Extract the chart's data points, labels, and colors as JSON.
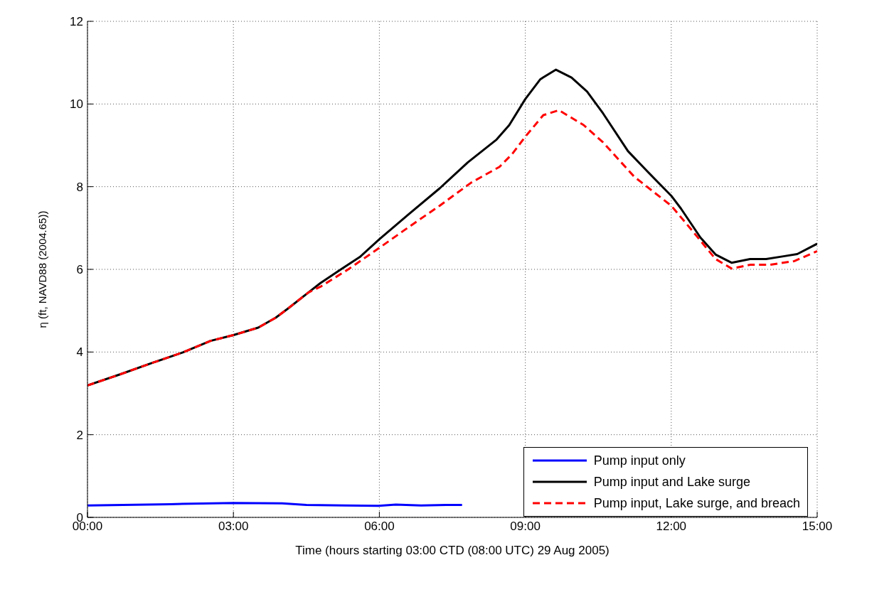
{
  "chart_data": {
    "type": "line",
    "xlabel": "Time (hours starting 03:00 CTD (08:00 UTC) 29 Aug 2005)",
    "ylabel": "η (ft, NAVD88 (2004.65))",
    "xlim": [
      0,
      15
    ],
    "xticks": [
      {
        "value": 0,
        "label": "00:00"
      },
      {
        "value": 3,
        "label": "03:00"
      },
      {
        "value": 6,
        "label": "06:00"
      },
      {
        "value": 9,
        "label": "09:00"
      },
      {
        "value": 12,
        "label": "12:00"
      },
      {
        "value": 15,
        "label": "15:00"
      }
    ],
    "ylim": [
      0,
      12
    ],
    "yticks": [
      0,
      2,
      4,
      6,
      8,
      10,
      12
    ],
    "grid": true,
    "legend": "bottom right",
    "marker": "none",
    "series": [
      {
        "name": "Pump input only",
        "color": "#0000ff",
        "line_style": "solid",
        "x": [
          0,
          1.7,
          3.0,
          4.0,
          4.5,
          5.3,
          5.98,
          6.34,
          6.86,
          7.37,
          7.7
        ],
        "values": [
          0.29,
          0.32,
          0.35,
          0.34,
          0.3,
          0.29,
          0.28,
          0.31,
          0.29,
          0.3,
          0.3
        ]
      },
      {
        "name": "Pump input and Lake surge",
        "color": "#000000",
        "line_style": "solid",
        "x": [
          0,
          0.67,
          1.34,
          1.96,
          2.53,
          3.0,
          3.51,
          3.87,
          4.12,
          4.54,
          4.79,
          5.21,
          5.6,
          6.0,
          6.6,
          7.24,
          7.82,
          8.41,
          8.67,
          9.0,
          9.31,
          9.63,
          9.95,
          10.27,
          10.6,
          11.11,
          11.5,
          12.0,
          12.2,
          12.6,
          12.91,
          13.24,
          13.62,
          13.95,
          14.33,
          14.59,
          15.0
        ],
        "values": [
          3.19,
          3.46,
          3.74,
          3.99,
          4.27,
          4.41,
          4.59,
          4.83,
          5.05,
          5.44,
          5.67,
          6.0,
          6.3,
          6.73,
          7.33,
          7.96,
          8.59,
          9.14,
          9.49,
          10.12,
          10.6,
          10.83,
          10.64,
          10.3,
          9.77,
          8.86,
          8.38,
          7.78,
          7.47,
          6.77,
          6.36,
          6.16,
          6.25,
          6.25,
          6.32,
          6.37,
          6.62
        ]
      },
      {
        "name": "Pump input, Lake surge, and breach",
        "color": "#ff0000",
        "line_style": "dashed",
        "x": [
          0,
          0.67,
          1.34,
          1.96,
          2.53,
          3.0,
          3.51,
          3.87,
          4.12,
          4.54,
          4.79,
          5.36,
          6.0,
          6.6,
          7.24,
          7.89,
          8.47,
          8.73,
          9.0,
          9.37,
          9.69,
          10.2,
          10.6,
          11.24,
          12.0,
          12.4,
          12.91,
          13.24,
          13.62,
          14.02,
          14.53,
          15.0
        ],
        "values": [
          3.19,
          3.46,
          3.74,
          3.99,
          4.27,
          4.41,
          4.59,
          4.83,
          5.05,
          5.44,
          5.58,
          6.0,
          6.52,
          7.02,
          7.54,
          8.1,
          8.48,
          8.79,
          9.21,
          9.73,
          9.85,
          9.49,
          9.07,
          8.24,
          7.54,
          6.98,
          6.25,
          6.02,
          6.11,
          6.11,
          6.2,
          6.44
        ]
      }
    ]
  }
}
